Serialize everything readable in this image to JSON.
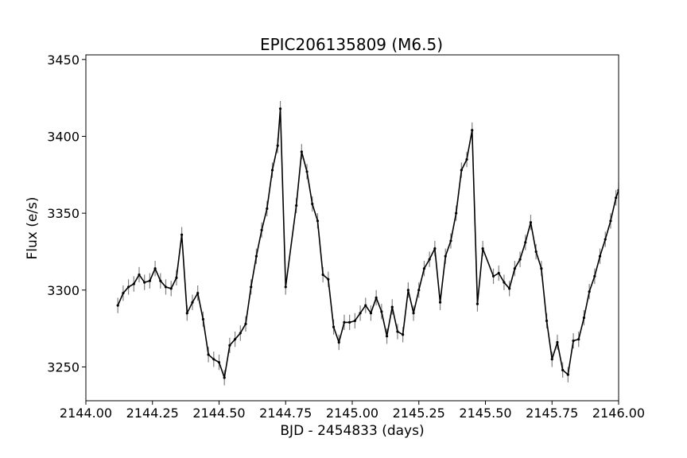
{
  "chart_data": {
    "type": "line",
    "title": "EPIC206135809 (M6.5)",
    "xlabel": "BJD - 2454833 (days)",
    "ylabel": "Flux (e/s)",
    "xlim": [
      2144.0,
      2146.0
    ],
    "ylim": [
      3228,
      3453
    ],
    "xticks": [
      2144.0,
      2144.25,
      2144.5,
      2144.75,
      2145.0,
      2145.25,
      2145.5,
      2145.75,
      2146.0
    ],
    "xtick_labels": [
      "2144.00",
      "2144.25",
      "2144.50",
      "2144.75",
      "2145.00",
      "2145.25",
      "2145.50",
      "2145.75",
      "2146.00"
    ],
    "yticks": [
      3250,
      3300,
      3350,
      3400,
      3450
    ],
    "ytick_labels": [
      "3250",
      "3300",
      "3350",
      "3400",
      "3450"
    ],
    "grid": false,
    "line_color": "#000000",
    "errorbar_color": "#808080",
    "error": 5,
    "series": [
      {
        "x": [
          2144.12,
          2144.14,
          2144.16,
          2144.18,
          2144.2,
          2144.22,
          2144.24,
          2144.26,
          2144.28,
          2144.3,
          2144.32,
          2144.34,
          2144.36,
          2144.38,
          2144.4,
          2144.42,
          2144.44,
          2144.46,
          2144.48,
          2144.5,
          2144.52,
          2144.54,
          2144.56,
          2144.58,
          2144.6,
          2144.62,
          2144.64,
          2144.66,
          2144.68,
          2144.7,
          2144.72,
          2144.73,
          2144.75,
          2144.79,
          2144.81,
          2144.83,
          2144.85,
          2144.87,
          2144.89,
          2144.91,
          2144.93,
          2144.95,
          2144.97,
          2144.99,
          2145.01,
          2145.03,
          2145.05,
          2145.07,
          2145.09,
          2145.11,
          2145.13,
          2145.15,
          2145.17,
          2145.19,
          2145.21,
          2145.23,
          2145.25,
          2145.27,
          2145.29,
          2145.31,
          2145.33,
          2145.35,
          2145.37,
          2145.39,
          2145.41,
          2145.43,
          2145.45,
          2145.47,
          2145.49,
          2145.53,
          2145.55,
          2145.57,
          2145.59,
          2145.61,
          2145.63,
          2145.65,
          2145.67,
          2145.69,
          2145.71,
          2145.73,
          2145.75,
          2145.77,
          2145.79,
          2145.81,
          2145.83,
          2145.85,
          2145.87,
          2145.89,
          2145.91,
          2145.93,
          2145.95,
          2145.97,
          2145.99,
          2146.0
        ],
        "y": [
          3290,
          3298,
          3302,
          3304,
          3310,
          3305,
          3306,
          3314,
          3306,
          3302,
          3301,
          3308,
          3336,
          3285,
          3292,
          3298,
          3281,
          3258,
          3255,
          3253,
          3243,
          3264,
          3268,
          3272,
          3278,
          3302,
          3322,
          3339,
          3353,
          3378,
          3394,
          3418,
          3302,
          3355,
          3390,
          3377,
          3356,
          3345,
          3310,
          3307,
          3276,
          3266,
          3279,
          3279,
          3280,
          3285,
          3290,
          3285,
          3295,
          3286,
          3270,
          3289,
          3273,
          3271,
          3300,
          3285,
          3300,
          3314,
          3320,
          3327,
          3292,
          3322,
          3332,
          3350,
          3378,
          3385,
          3404,
          3291,
          3327,
          3309,
          3311,
          3305,
          3301,
          3314,
          3320,
          3331,
          3344,
          3325,
          3314,
          3280,
          3255,
          3266,
          3248,
          3245,
          3267,
          3268,
          3282,
          3299,
          3309,
          3322,
          3333,
          3345,
          3360,
          3365
        ]
      }
    ]
  }
}
